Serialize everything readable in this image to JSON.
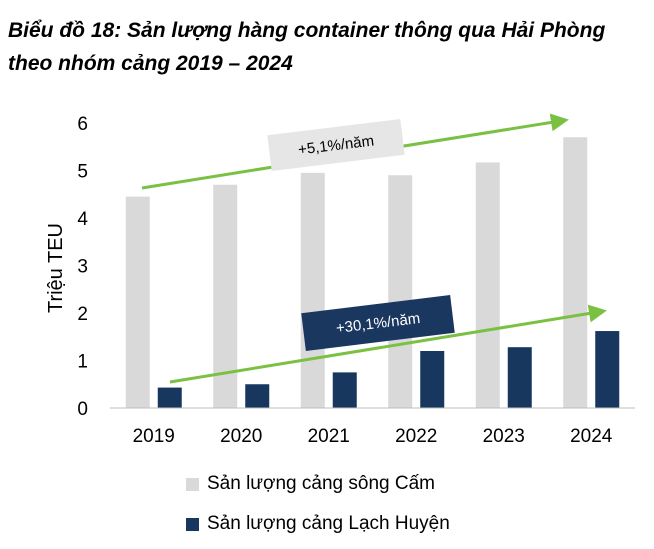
{
  "title": "Biểu đồ 18: Sản lượng hàng container thông qua Hải Phòng theo nhóm cảng 2019 – 2024",
  "colors": {
    "series1": "#d9d9d9",
    "series2": "#17375e",
    "arrow": "#7ac143",
    "badge1": "#e6e6e6",
    "badge2": "#1a3760"
  },
  "chart_data": {
    "type": "bar",
    "categories": [
      "2019",
      "2020",
      "2021",
      "2022",
      "2023",
      "2024"
    ],
    "series": [
      {
        "name": "Sản lượng cảng sông Cấm",
        "values": [
          4.45,
          4.7,
          4.95,
          4.9,
          5.17,
          5.7
        ]
      },
      {
        "name": "Sản lượng cảng Lạch Huyện",
        "values": [
          0.43,
          0.5,
          0.75,
          1.2,
          1.28,
          1.62
        ]
      }
    ],
    "ylabel": "Triệu TEU",
    "xlabel": "",
    "ylim": [
      0,
      6
    ],
    "yticks": [
      "0",
      "1",
      "2",
      "3",
      "4",
      "5",
      "6"
    ],
    "grid": false,
    "legend_position": "bottom",
    "annotations": [
      {
        "text": "+5,1%/năm",
        "series": 0
      },
      {
        "text": "+30,1%/năm",
        "series": 1
      }
    ]
  }
}
